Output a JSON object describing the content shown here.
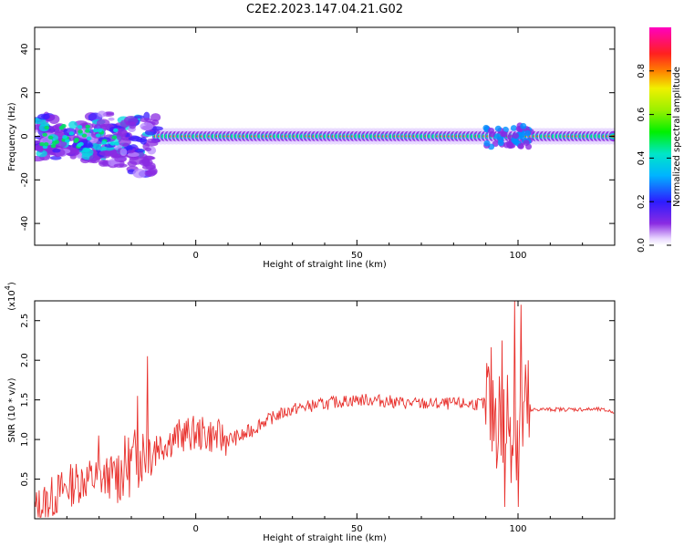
{
  "figure_title": "C2E2.2023.147.04.21.G02",
  "chart_data": [
    {
      "type": "heatmap",
      "xlabel": "Height of straight line (km)",
      "ylabel": "Frequency (Hz)",
      "xlim": [
        -50,
        130
      ],
      "ylim": [
        -50,
        50
      ],
      "xticks": [
        0,
        50,
        100
      ],
      "xtick_labels": [
        "0",
        "50",
        "100"
      ],
      "yticks": [
        -40,
        -20,
        0,
        20,
        40
      ],
      "ytick_labels": [
        "-40",
        "-20",
        "0",
        "20",
        "40"
      ],
      "colorbar": {
        "label": "Normalized spectral amplitude",
        "range": [
          0,
          1
        ],
        "ticks": [
          0.0,
          0.2,
          0.4,
          0.6,
          0.8
        ],
        "tick_labels": [
          "0.0",
          "0.2",
          "0.4",
          "0.6",
          "0.8"
        ],
        "colormap": "rainbow (white-violet-blue-cyan-green-yellow-red-magenta)"
      },
      "description_features": [
        "strong narrow band centered at 0 Hz from about -10 km to 130 km",
        "broad scattered power from -50 km to -15 km, frequencies about -20 to +10 Hz",
        "disturbance near 95-103 km around 0 Hz"
      ],
      "grid": false
    },
    {
      "type": "line",
      "xlabel": "Height of straight line (km)",
      "ylabel": "SNR (10 * v/v)",
      "y_multiplier_label": "(x10",
      "y_multiplier_exp": "4",
      "y_multiplier_close": ")",
      "xlim": [
        -50,
        130
      ],
      "ylim": [
        0.0,
        2.75
      ],
      "xticks": [
        0,
        50,
        100
      ],
      "xtick_labels": [
        "0",
        "50",
        "100"
      ],
      "yticks": [
        0.5,
        1.0,
        1.5,
        2.0,
        2.5
      ],
      "ytick_labels": [
        "0.5",
        "1.0",
        "1.5",
        "2.0",
        "2.5"
      ],
      "series": [
        {
          "color": "#e8302c",
          "x": [
            -50,
            -45,
            -40,
            -35,
            -30,
            -25,
            -20,
            -15,
            -10,
            -5,
            0,
            5,
            10,
            15,
            20,
            25,
            30,
            35,
            40,
            45,
            50,
            55,
            60,
            65,
            70,
            75,
            80,
            85,
            90,
            95,
            100,
            105,
            110,
            115,
            120,
            125,
            130
          ],
          "y": [
            0.1,
            0.25,
            0.4,
            0.5,
            0.5,
            0.55,
            0.7,
            0.9,
            0.95,
            1.05,
            1.08,
            1.05,
            1.0,
            1.05,
            1.2,
            1.3,
            1.38,
            1.42,
            1.45,
            1.48,
            1.5,
            1.5,
            1.48,
            1.46,
            1.45,
            1.45,
            1.45,
            1.45,
            1.45,
            1.3,
            1.2,
            1.38,
            1.38,
            1.38,
            1.38,
            1.38,
            1.35
          ],
          "spikes": [
            {
              "x": -15,
              "y": 2.05
            },
            {
              "x": -18,
              "y": 1.55
            },
            {
              "x": -30,
              "y": 1.05
            },
            {
              "x": 95,
              "y": 2.25
            },
            {
              "x": 96,
              "y": 0.15
            },
            {
              "x": 99,
              "y": 2.75
            },
            {
              "x": 101,
              "y": 2.7
            },
            {
              "x": 100,
              "y": 0.15
            }
          ]
        }
      ],
      "grid": false
    }
  ]
}
